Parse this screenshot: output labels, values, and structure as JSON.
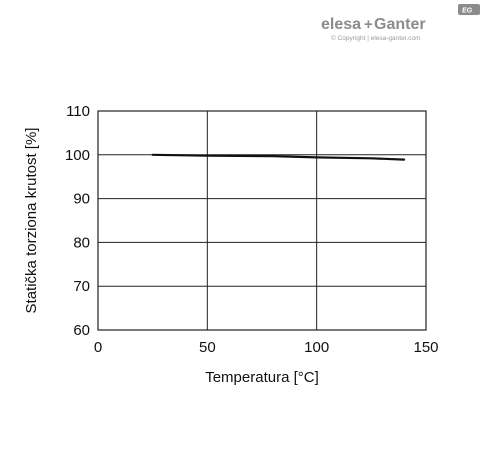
{
  "logo": {
    "brand_left": "elesa",
    "plus": "+",
    "brand_right": "Ganter",
    "copyright": "© Copyright | elesa-ganter.com",
    "badge": "EG"
  },
  "chart_data": {
    "type": "line",
    "title": "",
    "xlabel": "Temperatura [°C]",
    "ylabel": "Statička torziona krutost [%]",
    "xlim": [
      0,
      150
    ],
    "ylim": [
      60,
      110
    ],
    "xticks": [
      0,
      50,
      100,
      150
    ],
    "yticks": [
      60,
      70,
      80,
      90,
      100,
      110
    ],
    "grid": true,
    "series": [
      {
        "x": [
          25,
          50,
          80,
          100,
          125,
          140
        ],
        "y": [
          100,
          99.8,
          99.7,
          99.4,
          99.2,
          98.9
        ]
      }
    ]
  }
}
